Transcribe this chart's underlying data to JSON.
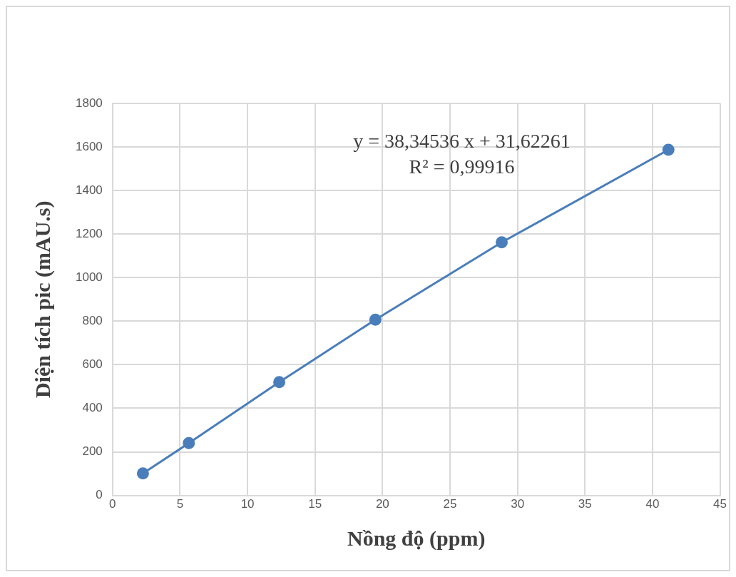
{
  "chart_data": {
    "type": "line",
    "xlabel": "Nồng độ (ppm)",
    "ylabel": "Diện tích pic (mAU.s)",
    "annotations": [
      "y = 38,34536 x + 31,62261",
      "R² = 0,99916"
    ],
    "series": [
      {
        "color": "#4a7ebb",
        "x": [
          2.25,
          5.65,
          12.35,
          19.47,
          28.83,
          41.18
        ],
        "values": [
          101,
          240,
          520,
          807,
          1162,
          1587
        ]
      }
    ],
    "xlim": [
      0,
      45
    ],
    "xticks": [
      0,
      5,
      10,
      15,
      20,
      25,
      30,
      35,
      40,
      45
    ],
    "ylim": [
      0,
      1800
    ],
    "yticks": [
      0,
      200,
      400,
      600,
      800,
      1000,
      1200,
      1400,
      1600,
      1800
    ],
    "grid": true,
    "legend": false,
    "marker": "circle",
    "line_style": "solid"
  }
}
